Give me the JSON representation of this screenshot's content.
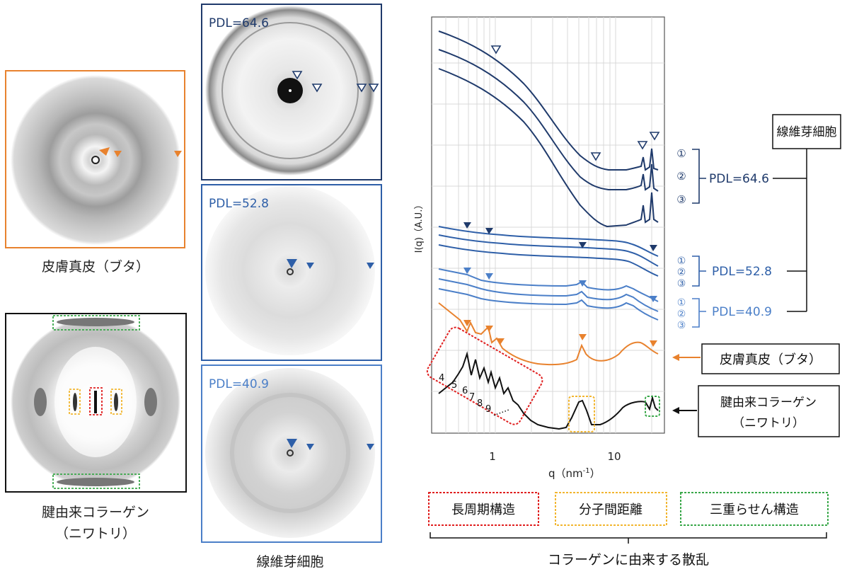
{
  "panels": {
    "skin_caption": "皮膚真皮（ブタ）",
    "tendon_caption_1": "腱由来コラーゲン",
    "tendon_caption_2": "（ニワトリ）",
    "fibro_caption": "線維芽細胞",
    "pdl_top": "PDL=64.6",
    "pdl_mid": "PDL=52.8",
    "pdl_bot": "PDL=40.9"
  },
  "chart": {
    "ylabel": "I(q)（A.U.）",
    "xlabel_main": "q（nm",
    "xlabel_sup": "-1",
    "xlabel_end": "）",
    "ticks": [
      "1",
      "10"
    ],
    "peak_numbers": [
      "4",
      "5",
      "6",
      "7",
      "8",
      "9"
    ],
    "dots": "......"
  },
  "legend": {
    "fibro_box": "線維芽細胞",
    "circled": [
      "①",
      "②",
      "③"
    ],
    "pdl_646": "PDL=64.6",
    "pdl_528": "PDL=52.8",
    "pdl_409": "PDL=40.9",
    "skin_box": "皮膚真皮（ブタ）",
    "tendon_box_1": "腱由来コラーゲン",
    "tendon_box_2": "（ニワトリ）"
  },
  "bottom": {
    "long_period": "長周期構造",
    "intermolecular": "分子間距離",
    "triple_helix": "三重らせん構造",
    "collagen_scatter": "コラーゲンに由来する散乱"
  },
  "colors": {
    "orange": "#e8822e",
    "dark_navy": "#1f3a6b",
    "mid_blue": "#2e5fa8",
    "light_blue": "#4b7fc8",
    "red_dotted": "#e02020",
    "yellow_dotted": "#f2b630",
    "green_dotted": "#3aa84a"
  },
  "chart_data": {
    "type": "line",
    "xlabel": "q（nm-1）",
    "ylabel": "I(q)（A.U.）",
    "x_scale": "log",
    "x_ticks": [
      1,
      10
    ],
    "series": [
      {
        "name": "PDL=64.6 ①"
      },
      {
        "name": "PDL=64.6 ②"
      },
      {
        "name": "PDL=64.6 ③"
      },
      {
        "name": "PDL=52.8 ①"
      },
      {
        "name": "PDL=52.8 ②"
      },
      {
        "name": "PDL=52.8 ③"
      },
      {
        "name": "PDL=40.9 ①"
      },
      {
        "name": "PDL=40.9 ②"
      },
      {
        "name": "PDL=40.9 ③"
      },
      {
        "name": "皮膚真皮（ブタ）"
      },
      {
        "name": "腱由来コラーゲン（ニワトリ）"
      }
    ]
  }
}
